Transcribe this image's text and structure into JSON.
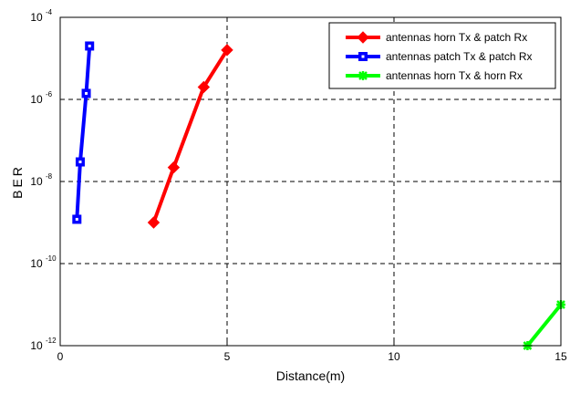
{
  "chart_data": {
    "type": "line",
    "title": "",
    "xlabel": "Distance(m)",
    "ylabel": "BER",
    "xlim": [
      0,
      15
    ],
    "ylim": [
      1e-12,
      0.0001
    ],
    "yscale": "log",
    "grid": true,
    "grid_style": "dashed",
    "legend_position": "top-right",
    "x_ticks": [
      {
        "value": 0,
        "label": "0"
      },
      {
        "value": 5,
        "label": "5"
      },
      {
        "value": 10,
        "label": "10"
      },
      {
        "value": 15,
        "label": "15"
      }
    ],
    "y_ticks": [
      {
        "value": 1e-12,
        "base": "10",
        "exp": "-12"
      },
      {
        "value": 1e-10,
        "base": "10",
        "exp": "-10"
      },
      {
        "value": 1e-08,
        "base": "10",
        "exp": "-8"
      },
      {
        "value": 1e-06,
        "base": "10",
        "exp": "-6"
      },
      {
        "value": 0.0001,
        "base": "10",
        "exp": "-4"
      }
    ],
    "series": [
      {
        "name": "antennas horn Tx & patch Rx",
        "color": "#ff0000",
        "marker": "diamond",
        "x": [
          2.8,
          3.4,
          4.3,
          5.0
        ],
        "y": [
          1e-09,
          2.2e-08,
          2e-06,
          1.6e-05
        ]
      },
      {
        "name": "antennas patch Tx & patch Rx",
        "color": "#0000ff",
        "marker": "square",
        "x": [
          0.5,
          0.6,
          0.78,
          0.88
        ],
        "y": [
          1.2e-09,
          3e-08,
          1.4e-06,
          2e-05
        ]
      },
      {
        "name": "antennas horn Tx & horn Rx",
        "color": "#00ff00",
        "marker": "asterisk",
        "x": [
          14.0,
          15.0
        ],
        "y": [
          1e-12,
          1e-11
        ]
      }
    ]
  }
}
